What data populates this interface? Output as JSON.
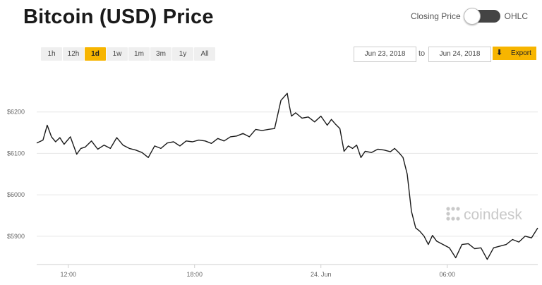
{
  "title": "Bitcoin (USD) Price",
  "toggle": {
    "left_label": "Closing Price",
    "right_label": "OHLC"
  },
  "ranges": [
    "1h",
    "12h",
    "1d",
    "1w",
    "1m",
    "3m",
    "1y",
    "All"
  ],
  "active_range": "1d",
  "date_from": "Jun 23, 2018",
  "to_label": "to",
  "date_to": "Jun 24, 2018",
  "export_label": "Export",
  "watermark": "coindesk",
  "colors": {
    "accent": "#f7b500",
    "line": "#1a1a1a",
    "grid": "#e6e6e6"
  },
  "chart_data": {
    "type": "line",
    "ylim": [
      5835,
      6300
    ],
    "y_ticks": [
      5900,
      6000,
      6100,
      6200
    ],
    "y_tick_labels": [
      "$5900",
      "$6000",
      "$6100",
      "$6200"
    ],
    "x_ticks": [
      1.5,
      7.5,
      13.5,
      19.5
    ],
    "x_tick_labels": [
      "12:00",
      "18:00",
      "24. Jun",
      "06:00"
    ],
    "xlim": [
      0,
      23.8
    ],
    "grid": true,
    "series": [
      {
        "x": [
          0,
          0.3,
          0.5,
          0.7,
          0.9,
          1.1,
          1.3,
          1.6,
          1.9,
          2.1,
          2.3,
          2.6,
          2.9,
          3.2,
          3.5,
          3.8,
          4.1,
          4.4,
          4.7,
          5.0,
          5.3,
          5.6,
          5.9,
          6.2,
          6.5,
          6.8,
          7.1,
          7.4,
          7.7,
          8.0,
          8.3,
          8.6,
          8.9,
          9.2,
          9.5,
          9.8,
          10.1,
          10.4,
          10.7,
          11.0,
          11.3,
          11.6,
          11.9,
          12.0,
          12.1,
          12.3,
          12.6,
          12.9,
          13.2,
          13.5,
          13.8,
          14.0,
          14.2,
          14.4,
          14.6,
          14.8,
          15.0,
          15.2,
          15.4,
          15.6,
          15.9,
          16.2,
          16.5,
          16.8,
          17.0,
          17.2,
          17.4,
          17.6,
          17.8,
          18.0,
          18.2,
          18.4,
          18.6,
          18.8,
          19.0,
          19.3,
          19.6,
          19.9,
          20.2,
          20.5,
          20.8,
          21.1,
          21.4,
          21.7,
          22.0,
          22.3,
          22.6,
          22.9,
          23.2,
          23.5,
          23.8
        ],
        "y": [
          6125,
          6132,
          6168,
          6140,
          6128,
          6138,
          6122,
          6140,
          6098,
          6112,
          6115,
          6130,
          6110,
          6120,
          6112,
          6138,
          6120,
          6112,
          6108,
          6102,
          6090,
          6118,
          6112,
          6125,
          6128,
          6118,
          6130,
          6128,
          6132,
          6130,
          6124,
          6136,
          6130,
          6140,
          6142,
          6148,
          6140,
          6158,
          6155,
          6158,
          6160,
          6228,
          6245,
          6215,
          6190,
          6198,
          6185,
          6188,
          6176,
          6190,
          6168,
          6182,
          6170,
          6160,
          6105,
          6118,
          6112,
          6120,
          6090,
          6105,
          6102,
          6110,
          6108,
          6104,
          6112,
          6102,
          6090,
          6050,
          5960,
          5920,
          5912,
          5900,
          5880,
          5902,
          5888,
          5880,
          5872,
          5848,
          5880,
          5882,
          5870,
          5872,
          5844,
          5872,
          5876,
          5880,
          5892,
          5886,
          5900,
          5896,
          5920
        ]
      }
    ]
  }
}
